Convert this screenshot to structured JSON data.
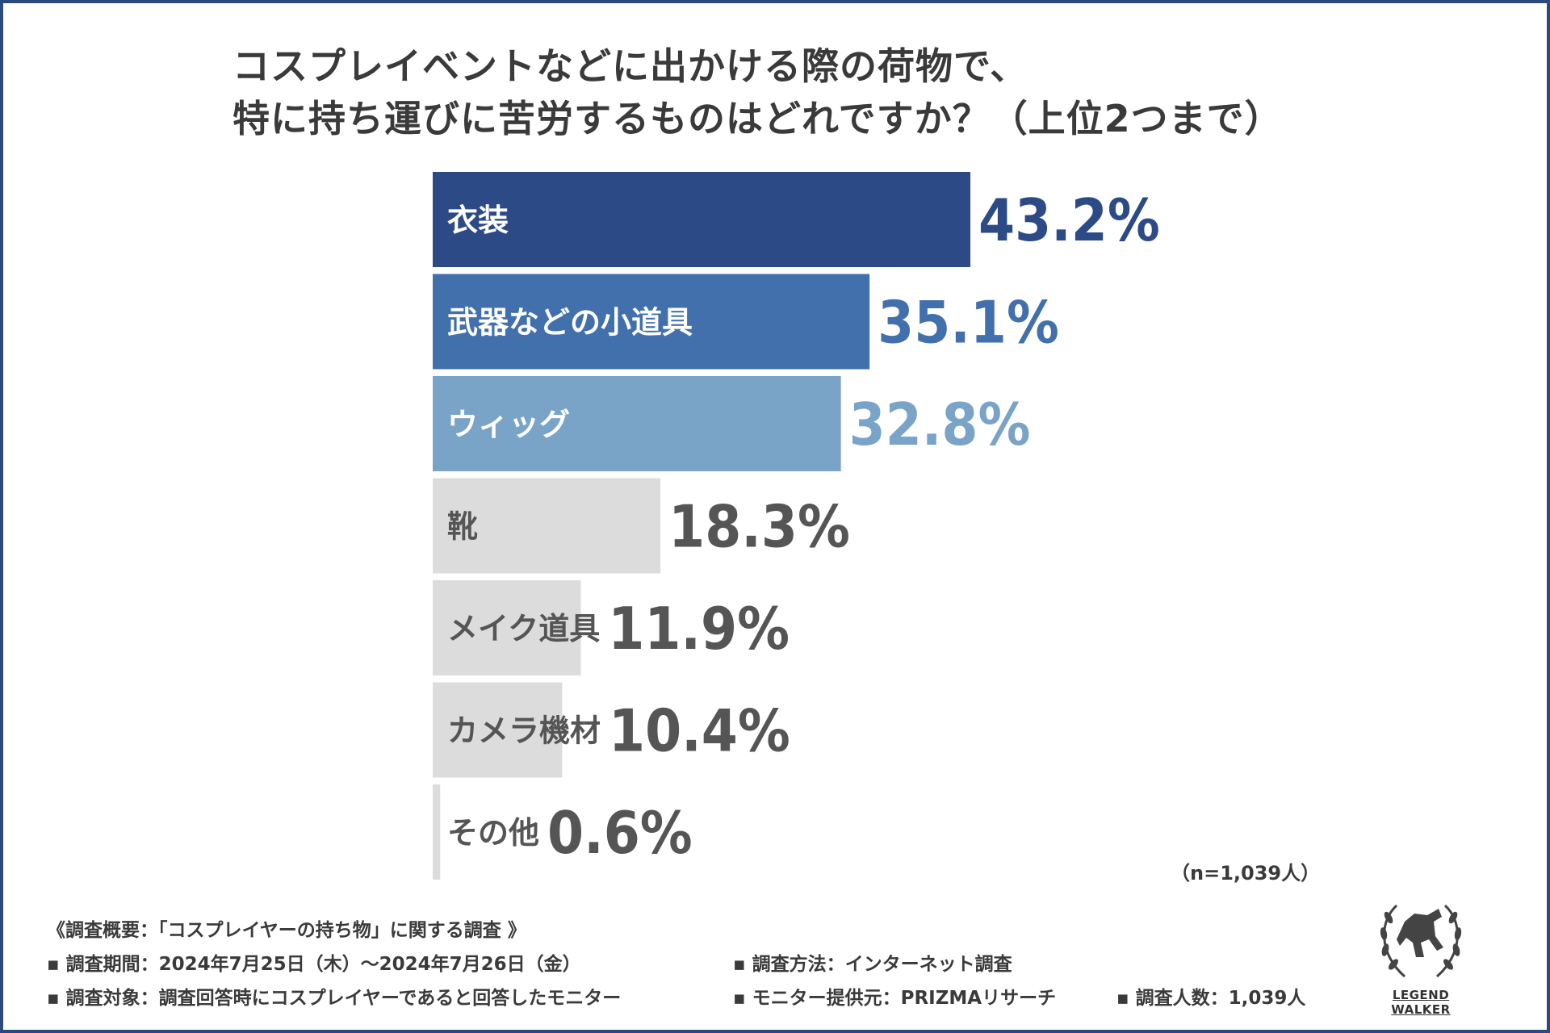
{
  "title": {
    "line1": "コスプレイベントなどに出かける際の荷物で、",
    "line2": "特に持ち運びに苦労するものはどれですか？（上位2つまで）"
  },
  "chart_data": {
    "type": "bar",
    "orientation": "horizontal",
    "title": "コスプレイベントなどに出かける際の荷物で、特に持ち運びに苦労するものはどれですか？（上位2つまで）",
    "categories": [
      "衣装",
      "武器などの小道具",
      "ウィッグ",
      "靴",
      "メイク道具",
      "カメラ機材",
      "その他"
    ],
    "values": [
      43.2,
      35.1,
      32.8,
      18.3,
      11.9,
      10.4,
      0.6
    ],
    "value_labels": [
      "43.2%",
      "35.1%",
      "32.8%",
      "18.3%",
      "11.9%",
      "10.4%",
      "0.6%"
    ],
    "unit": "%",
    "bar_colors": [
      "#2c4a85",
      "#4170ac",
      "#7aa3c8",
      "#dcdcdc",
      "#dcdcdc",
      "#dcdcdc",
      "#dcdcdc"
    ],
    "label_colors": [
      "#ffffff",
      "#ffffff",
      "#ffffff",
      "#555555",
      "#555555",
      "#555555",
      "#555555"
    ],
    "value_colors": [
      "#2c4a85",
      "#4170ac",
      "#7aa3c8",
      "#555555",
      "#555555",
      "#555555",
      "#555555"
    ],
    "xlim": [
      0,
      43.2
    ],
    "grid": false,
    "legend": "none"
  },
  "sample_note": "（n=1,039人）",
  "footer": {
    "heading": "《調査概要：「コスプレイヤーの持ち物」に関する調査 》",
    "period": "▪ 調査期間：2024年7月25日（木）～2024年7月26日（金）",
    "method": "▪ 調査方法：インターネット調査",
    "target": "▪ 調査対象：調査回答時にコスプレイヤーであると回答したモニター",
    "provider": "▪ モニター提供元：PRIZMAリサーチ",
    "count": "▪ 調査人数：1,039人"
  },
  "logo": {
    "text": "LEGEND WALKER"
  },
  "colors": {
    "frame": "#2c4a80",
    "text": "#3a3a3a"
  }
}
